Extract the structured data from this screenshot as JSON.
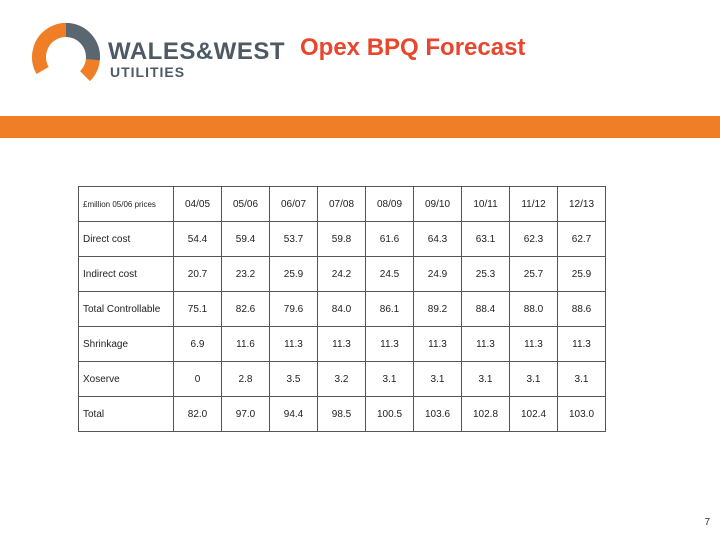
{
  "brand": {
    "logo_line1": "WALES&WEST",
    "logo_line2": "UTILITIES",
    "colors": {
      "orange": "#f07e26",
      "gray": "#4d5a66",
      "title_red": "#e8472d"
    }
  },
  "title": "Opex BPQ Forecast",
  "table": {
    "header_label": "£million 05/06 prices",
    "years": [
      "04/05",
      "05/06",
      "06/07",
      "07/08",
      "08/09",
      "09/10",
      "10/11",
      "11/12",
      "12/13"
    ],
    "rows": [
      {
        "label": "Direct cost",
        "values": [
          "54.4",
          "59.4",
          "53.7",
          "59.8",
          "61.6",
          "64.3",
          "63.1",
          "62.3",
          "62.7"
        ]
      },
      {
        "label": "Indirect cost",
        "values": [
          "20.7",
          "23.2",
          "25.9",
          "24.2",
          "24.5",
          "24.9",
          "25.3",
          "25.7",
          "25.9"
        ]
      },
      {
        "label": "Total Controllable",
        "values": [
          "75.1",
          "82.6",
          "79.6",
          "84.0",
          "86.1",
          "89.2",
          "88.4",
          "88.0",
          "88.6"
        ]
      },
      {
        "label": "Shrinkage",
        "values": [
          "6.9",
          "11.6",
          "11.3",
          "11.3",
          "11.3",
          "11.3",
          "11.3",
          "11.3",
          "11.3"
        ]
      },
      {
        "label": "Xoserve",
        "values": [
          "0",
          "2.8",
          "3.5",
          "3.2",
          "3.1",
          "3.1",
          "3.1",
          "3.1",
          "3.1"
        ]
      },
      {
        "label": "Total",
        "values": [
          "82.0",
          "97.0",
          "94.4",
          "98.5",
          "100.5",
          "103.6",
          "102.8",
          "102.4",
          "103.0"
        ]
      }
    ]
  },
  "slide_number": "7"
}
